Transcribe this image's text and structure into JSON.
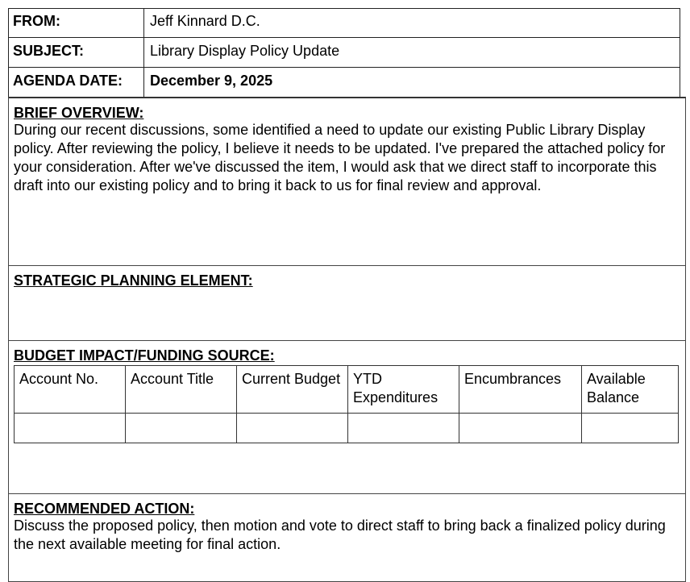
{
  "header": {
    "from_label": "FROM:",
    "from_value": "Jeff Kinnard D.C.",
    "subject_label": "SUBJECT:",
    "subject_value": "Library Display Policy Update",
    "date_label": "AGENDA DATE:",
    "date_value": "December 9, 2025"
  },
  "brief_overview": {
    "title": "BRIEF OVERVIEW:",
    "text": "During our recent discussions, some identified a need to update our existing Public Library Display policy.  After reviewing the policy, I believe it needs to be updated.  I've prepared the attached policy for your consideration.  After we've discussed the item, I would ask that we direct staff to incorporate this draft into our existing policy and to bring it back to us for final review and approval."
  },
  "strategic": {
    "title": "STRATEGIC PLANNING ELEMENT:"
  },
  "budget": {
    "title": "BUDGET IMPACT/FUNDING SOURCE:",
    "columns": [
      "Account No.",
      "Account Title",
      "Current Budget",
      "YTD Expenditures",
      "Encumbrances",
      "Available Balance"
    ],
    "row": [
      "",
      "",
      "",
      "",
      "",
      ""
    ]
  },
  "recommended": {
    "title": "RECOMMENDED ACTION:",
    "text": "Discuss the proposed policy, then motion and vote to direct staff to bring back a finalized policy during the next available meeting for final action."
  }
}
